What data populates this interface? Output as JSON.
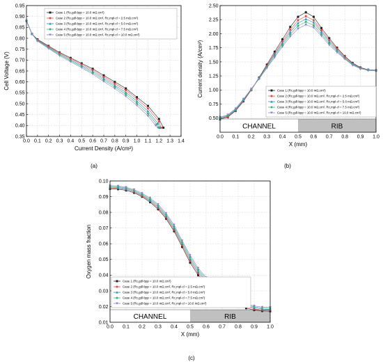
{
  "figure": {
    "panels": [
      "(a)",
      "(b)",
      "(c)"
    ]
  },
  "colors": {
    "case1": "#222222",
    "case2": "#e8473c",
    "case3": "#2e8bbf",
    "case4": "#2fb36a",
    "case5": "#8a83c9",
    "band": "#c0c0c0",
    "grid": "#dddddd"
  },
  "chart_data": [
    {
      "panel": "(a)",
      "type": "line",
      "title": "",
      "xlabel": "Current Density (A/cm²)",
      "ylabel": "Cell Voltage (V)",
      "xlim": [
        0.0,
        1.4
      ],
      "ylim": [
        0.35,
        0.95
      ],
      "xticks": [
        "0.0",
        "0.1",
        "0.2",
        "0.3",
        "0.4",
        "0.5",
        "0.6",
        "0.7",
        "0.8",
        "0.9",
        "1.0",
        "1.1",
        "1.2",
        "1.3",
        "1.4"
      ],
      "yticks": [
        "0.35",
        "0.40",
        "0.45",
        "0.50",
        "0.55",
        "0.60",
        "0.65",
        "0.70",
        "0.75",
        "0.80",
        "0.85",
        "0.90",
        "0.95"
      ],
      "grid": true,
      "legend": "top-center",
      "legend_entries": [
        "Case 1 (Rc,gdl-bpp = 10.0 mΩ.cm²)",
        "Case 2 (Rc,gdl-bpp = 10.0 mΩ.cm², Rc,mpl-cl = 2.5 mΩ.cm²)",
        "Case 3 (Rc,gdl-bpp = 10.0 mΩ.cm², Rc,mpl-cl = 5.0 mΩ.cm²)",
        "Case 4 (Rc,gdl-bpp = 10.0 mΩ.cm², Rc,mpl-cl = 7.5 mΩ.cm²)",
        "Case 5 (Rc,gdl-bpp = 10.0 mΩ.cm², Rc,mpl-cl = 10.0 mΩ.cm²)"
      ],
      "series": [
        {
          "x": [
            0.0,
            0.05,
            0.1,
            0.2,
            0.3,
            0.4,
            0.5,
            0.6,
            0.7,
            0.8,
            0.9,
            1.0,
            1.1,
            1.2,
            1.24
          ],
          "y": [
            0.88,
            0.82,
            0.795,
            0.765,
            0.735,
            0.71,
            0.685,
            0.66,
            0.63,
            0.6,
            0.57,
            0.53,
            0.49,
            0.43,
            0.39
          ]
        },
        {
          "x": [
            0.0,
            0.05,
            0.1,
            0.2,
            0.3,
            0.4,
            0.5,
            0.6,
            0.7,
            0.8,
            0.9,
            1.0,
            1.1,
            1.2,
            1.22
          ],
          "y": [
            0.88,
            0.82,
            0.793,
            0.762,
            0.732,
            0.706,
            0.68,
            0.654,
            0.623,
            0.592,
            0.562,
            0.522,
            0.478,
            0.418,
            0.39
          ]
        },
        {
          "x": [
            0.0,
            0.05,
            0.1,
            0.2,
            0.3,
            0.4,
            0.5,
            0.6,
            0.7,
            0.8,
            0.9,
            1.0,
            1.1,
            1.19,
            1.21
          ],
          "y": [
            0.88,
            0.82,
            0.791,
            0.759,
            0.728,
            0.701,
            0.675,
            0.648,
            0.616,
            0.584,
            0.552,
            0.512,
            0.466,
            0.41,
            0.39
          ]
        },
        {
          "x": [
            0.0,
            0.05,
            0.1,
            0.2,
            0.3,
            0.4,
            0.5,
            0.6,
            0.7,
            0.8,
            0.9,
            1.0,
            1.1,
            1.18,
            1.2
          ],
          "y": [
            0.88,
            0.82,
            0.789,
            0.756,
            0.724,
            0.697,
            0.67,
            0.642,
            0.609,
            0.577,
            0.543,
            0.502,
            0.455,
            0.405,
            0.39
          ]
        },
        {
          "x": [
            0.0,
            0.05,
            0.1,
            0.2,
            0.3,
            0.4,
            0.5,
            0.6,
            0.7,
            0.8,
            0.9,
            1.0,
            1.1,
            1.17,
            1.19
          ],
          "y": [
            0.88,
            0.82,
            0.787,
            0.753,
            0.72,
            0.692,
            0.665,
            0.636,
            0.602,
            0.569,
            0.534,
            0.492,
            0.444,
            0.4,
            0.39
          ]
        }
      ]
    },
    {
      "panel": "(b)",
      "type": "line",
      "title": "",
      "xlabel": "X (mm)",
      "ylabel": "Current density (A/cm²)",
      "xlim": [
        0.0,
        1.0
      ],
      "ylim": [
        0.25,
        2.5
      ],
      "xticks": [
        "0.0",
        "0.1",
        "0.2",
        "0.3",
        "0.4",
        "0.5",
        "0.6",
        "0.7",
        "0.8",
        "0.9",
        "1.0"
      ],
      "yticks": [
        "0.50",
        "0.75",
        "1.00",
        "1.25",
        "1.50",
        "1.75",
        "2.00",
        "2.25",
        "2.50"
      ],
      "grid": true,
      "legend": "center-right",
      "band_labels": [
        "CHANNEL",
        "RIB"
      ],
      "legend_entries": [
        "Case 1 (Rc,gdl-bpp = 10.0 mΩ.cm²)",
        "Case 2 (Rc,gdl-bpp = 10.0 mΩ.cm², Rc,mpl-cl = 2.5 mΩ.cm²)",
        "Case 3 (Rc,gdl-bpp = 10.0 mΩ.cm², Rc,mpl-cl = 5.0 mΩ.cm²)",
        "Case 4 (Rc,gdl-bpp = 10.0 mΩ.cm², Rc,mpl-cl = 7.5 mΩ.cm²)",
        "Case 5 (Rc,gdl-bpp = 10.0 mΩ.cm², Rc,mpl-cl = 10.0 mΩ.cm²)"
      ],
      "x": [
        0.0,
        0.05,
        0.1,
        0.15,
        0.2,
        0.25,
        0.3,
        0.35,
        0.4,
        0.45,
        0.5,
        0.55,
        0.6,
        0.65,
        0.7,
        0.75,
        0.8,
        0.85,
        0.9,
        0.95,
        1.0
      ],
      "series": [
        {
          "values": [
            0.48,
            0.52,
            0.63,
            0.8,
            1.0,
            1.22,
            1.45,
            1.68,
            1.9,
            2.12,
            2.3,
            2.38,
            2.3,
            2.1,
            1.92,
            1.75,
            1.6,
            1.48,
            1.4,
            1.36,
            1.35
          ]
        },
        {
          "values": [
            0.49,
            0.53,
            0.64,
            0.81,
            1.0,
            1.21,
            1.43,
            1.65,
            1.86,
            2.07,
            2.24,
            2.31,
            2.24,
            2.06,
            1.89,
            1.73,
            1.59,
            1.47,
            1.39,
            1.36,
            1.35
          ]
        },
        {
          "values": [
            0.5,
            0.54,
            0.65,
            0.82,
            1.01,
            1.21,
            1.42,
            1.63,
            1.83,
            2.03,
            2.19,
            2.26,
            2.2,
            2.03,
            1.86,
            1.71,
            1.57,
            1.46,
            1.39,
            1.36,
            1.35
          ]
        },
        {
          "values": [
            0.51,
            0.55,
            0.66,
            0.83,
            1.01,
            1.2,
            1.4,
            1.6,
            1.8,
            1.99,
            2.14,
            2.21,
            2.15,
            1.99,
            1.83,
            1.69,
            1.56,
            1.45,
            1.38,
            1.35,
            1.34
          ]
        },
        {
          "values": [
            0.52,
            0.56,
            0.67,
            0.84,
            1.02,
            1.2,
            1.39,
            1.58,
            1.77,
            1.95,
            2.09,
            2.16,
            2.11,
            1.96,
            1.8,
            1.67,
            1.55,
            1.44,
            1.38,
            1.35,
            1.34
          ]
        }
      ]
    },
    {
      "panel": "(c)",
      "type": "line",
      "title": "",
      "xlabel": "X (mm)",
      "ylabel": "Oxygen mass fraction",
      "xlim": [
        0.0,
        1.0
      ],
      "ylim": [
        0.01,
        0.1
      ],
      "xticks": [
        "0.0",
        "0.1",
        "0.2",
        "0.3",
        "0.4",
        "0.5",
        "0.6",
        "0.7",
        "0.8",
        "0.9",
        "1.0"
      ],
      "yticks": [
        "0.01",
        "0.02",
        "0.03",
        "0.04",
        "0.05",
        "0.06",
        "0.07",
        "0.08",
        "0.09",
        "0.10"
      ],
      "grid": true,
      "legend": "bottom-center",
      "band_labels": [
        "CHANNEL",
        "RIB"
      ],
      "legend_entries": [
        "Case 1 (Rc,gdl-bpp = 10.0 mΩ.cm²)",
        "Case 2 (Rc,gdl-bpp = 10.0 mΩ.cm², Rc,mpl-cl = 2.5 mΩ.cm²)",
        "Case 3 (Rc,gdl-bpp = 10.0 mΩ.cm², Rc,mpl-cl = 5.0 mΩ.cm²)",
        "Case 4 (Rc,gdl-bpp = 10.0 mΩ.cm², Rc,mpl-cl = 7.5 mΩ.cm²)",
        "Case 5 (Rc,gdl-bpp = 10.0 mΩ.cm², Rc,mpl-cl = 10.0 mΩ.cm²)"
      ],
      "x": [
        0.0,
        0.05,
        0.1,
        0.15,
        0.2,
        0.25,
        0.3,
        0.35,
        0.4,
        0.45,
        0.5,
        0.55,
        0.6,
        0.65,
        0.7,
        0.75,
        0.8,
        0.85,
        0.9,
        0.95,
        1.0
      ],
      "series": [
        {
          "values": [
            0.095,
            0.0948,
            0.094,
            0.0925,
            0.09,
            0.0865,
            0.082,
            0.076,
            0.068,
            0.058,
            0.048,
            0.04,
            0.0345,
            0.03,
            0.0265,
            0.0235,
            0.021,
            0.019,
            0.0178,
            0.0172,
            0.017
          ]
        },
        {
          "values": [
            0.0955,
            0.0953,
            0.0945,
            0.093,
            0.0905,
            0.0872,
            0.0828,
            0.0768,
            0.069,
            0.059,
            0.0492,
            0.0412,
            0.0355,
            0.0308,
            0.0273,
            0.0242,
            0.0218,
            0.0198,
            0.0185,
            0.0178,
            0.0176
          ]
        },
        {
          "values": [
            0.096,
            0.0958,
            0.095,
            0.0935,
            0.091,
            0.0878,
            0.0835,
            0.0776,
            0.07,
            0.06,
            0.0503,
            0.0423,
            0.0365,
            0.0316,
            0.0281,
            0.025,
            0.0225,
            0.0205,
            0.0192,
            0.0184,
            0.0182
          ]
        },
        {
          "values": [
            0.0965,
            0.0963,
            0.0955,
            0.094,
            0.0916,
            0.0885,
            0.0843,
            0.0785,
            0.071,
            0.061,
            0.0515,
            0.0434,
            0.0375,
            0.0325,
            0.0289,
            0.0258,
            0.0233,
            0.0212,
            0.0198,
            0.019,
            0.0188
          ]
        },
        {
          "values": [
            0.097,
            0.0968,
            0.096,
            0.0945,
            0.0922,
            0.0892,
            0.0851,
            0.0794,
            0.072,
            0.062,
            0.0527,
            0.0445,
            0.0385,
            0.0334,
            0.0297,
            0.0266,
            0.024,
            0.0219,
            0.0204,
            0.0196,
            0.0194
          ]
        }
      ]
    }
  ]
}
